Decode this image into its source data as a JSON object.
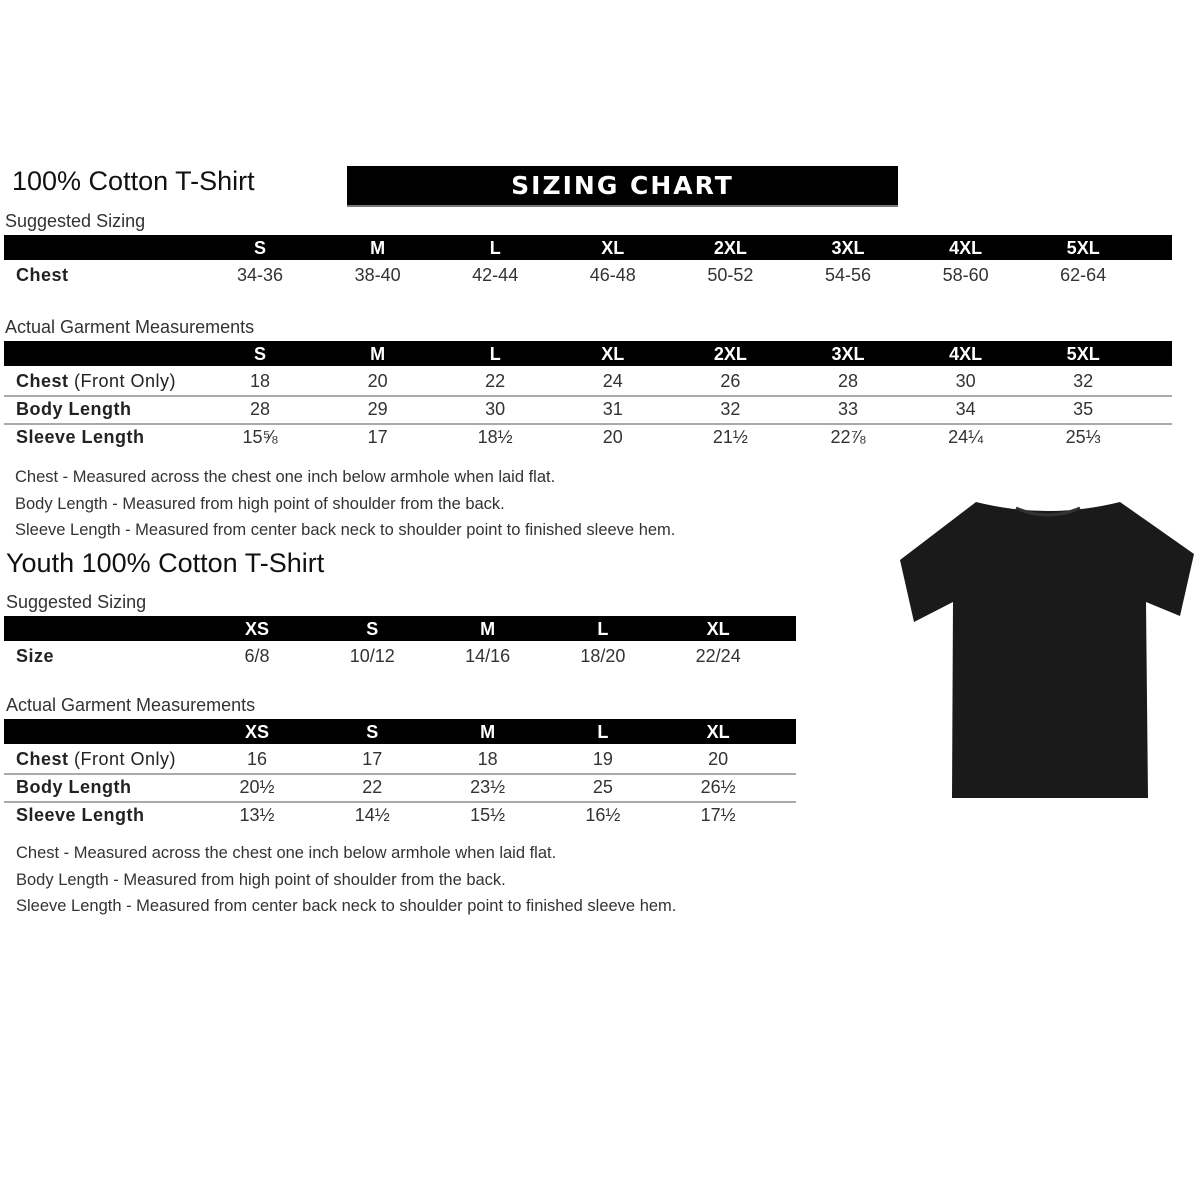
{
  "adult": {
    "title": "100% Cotton T-Shirt",
    "banner": "SIZING CHART",
    "suggested_label": "Suggested Sizing",
    "sizes": [
      "S",
      "M",
      "L",
      "XL",
      "2XL",
      "3XL",
      "4XL",
      "5XL"
    ],
    "suggested_rows": [
      {
        "label": "Chest",
        "note": "",
        "values": [
          "34-36",
          "38-40",
          "42-44",
          "46-48",
          "50-52",
          "54-56",
          "58-60",
          "62-64"
        ]
      }
    ],
    "actual_label": "Actual Garment Measurements",
    "actual_rows": [
      {
        "label": "Chest",
        "note": " (Front Only)",
        "values": [
          "18",
          "20",
          "22",
          "24",
          "26",
          "28",
          "30",
          "32"
        ]
      },
      {
        "label": "Body Length",
        "note": "",
        "values": [
          "28",
          "29",
          "30",
          "31",
          "32",
          "33",
          "34",
          "35"
        ]
      },
      {
        "label": "Sleeve Length",
        "note": "",
        "values": [
          "15⅝",
          "17",
          "18½",
          "20",
          "21½",
          "22⅞",
          "24¼",
          "25⅓"
        ]
      }
    ],
    "notes": [
      "Chest - Measured across the chest one inch below armhole when laid flat.",
      "Body Length - Measured from high point of shoulder from the back.",
      "Sleeve Length - Measured from center back neck to shoulder point to finished sleeve hem."
    ]
  },
  "youth": {
    "title": "Youth 100% Cotton T-Shirt",
    "suggested_label": "Suggested Sizing",
    "sizes": [
      "XS",
      "S",
      "M",
      "L",
      "XL"
    ],
    "suggested_rows": [
      {
        "label": "Size",
        "note": "",
        "values": [
          "6/8",
          "10/12",
          "14/16",
          "18/20",
          "22/24"
        ]
      }
    ],
    "actual_label": "Actual Garment Measurements",
    "actual_rows": [
      {
        "label": "Chest",
        "note": " (Front Only)",
        "values": [
          "16",
          "17",
          "18",
          "19",
          "20"
        ]
      },
      {
        "label": "Body Length",
        "note": "",
        "values": [
          "20½",
          "22",
          "23½",
          "25",
          "26½"
        ]
      },
      {
        "label": "Sleeve Length",
        "note": "",
        "values": [
          "13½",
          "14½",
          "15½",
          "16½",
          "17½"
        ]
      }
    ],
    "notes": [
      "Chest - Measured across the chest one inch below armhole when laid flat.",
      "Body Length - Measured from high point of shoulder from the back.",
      "Sleeve Length - Measured from center back neck to shoulder point to finished sleeve hem."
    ]
  },
  "colors": {
    "header_bg": "#000000",
    "shirt": "#1a1a1a",
    "divider": "#aaaaaa"
  }
}
